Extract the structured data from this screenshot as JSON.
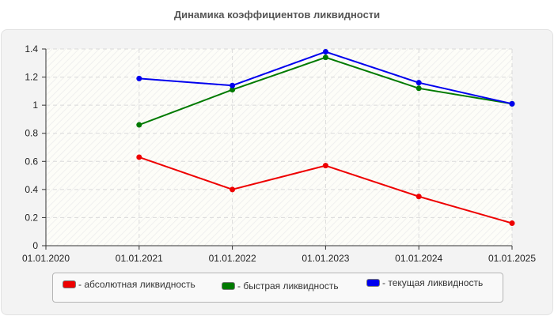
{
  "chart_data": {
    "type": "line",
    "title": "Динамика коэффициентов ликвидности",
    "xlabel": "",
    "ylabel": "",
    "categories": [
      "01.01.2020",
      "01.01.2021",
      "01.01.2022",
      "01.01.2023",
      "01.01.2024",
      "01.01.2025"
    ],
    "ylim": [
      0,
      1.4
    ],
    "yticks": [
      "0",
      "0.2",
      "0.4",
      "0.6",
      "0.8",
      "1",
      "1.2",
      "1.4"
    ],
    "grid": true,
    "legend_position": "bottom",
    "series": [
      {
        "name": "абсолютная ликвидность",
        "legend_label": "- абсолютная ликвидность",
        "color": "#ee0000",
        "values": [
          null,
          0.63,
          0.4,
          0.57,
          0.35,
          0.16
        ]
      },
      {
        "name": "быстрая ликвидность",
        "legend_label": "- быстрая ликвидность",
        "color": "#007a00",
        "values": [
          null,
          0.86,
          1.11,
          1.34,
          1.12,
          1.01
        ]
      },
      {
        "name": "текущая ликвидность",
        "legend_label": "- текущая ликвидность",
        "color": "#0000ee",
        "values": [
          null,
          1.19,
          1.14,
          1.38,
          1.16,
          1.01
        ]
      }
    ]
  }
}
